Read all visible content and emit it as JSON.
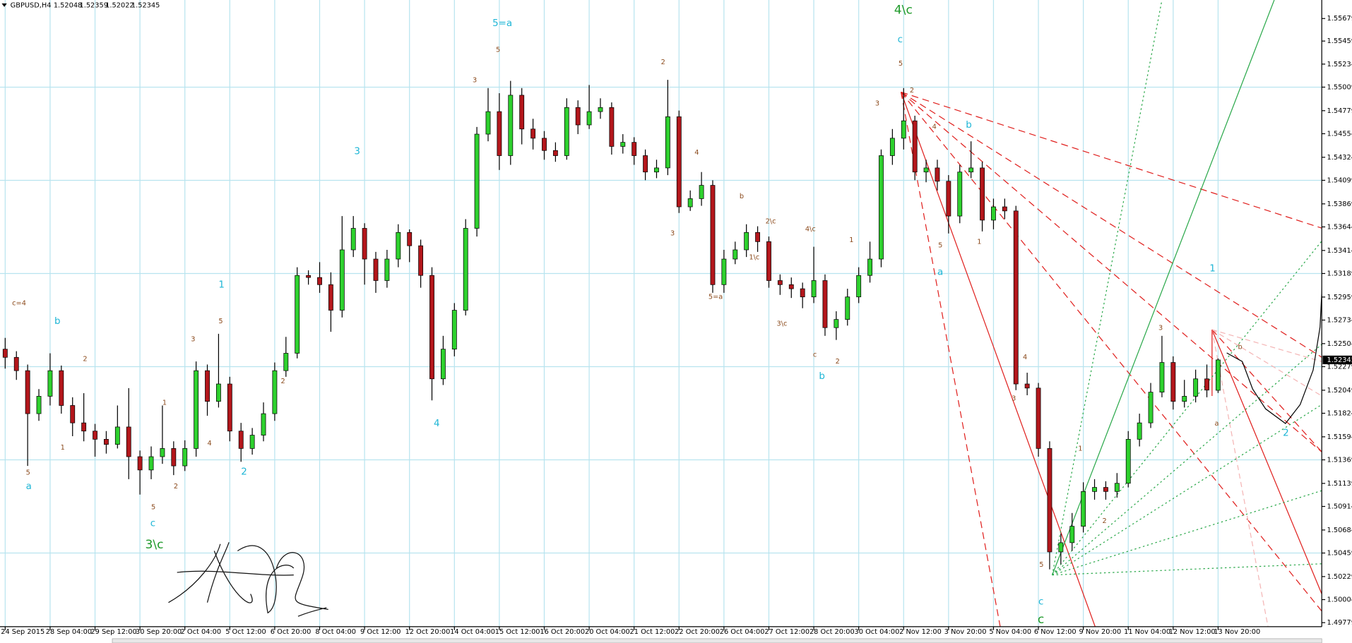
{
  "chart_data": {
    "type": "candlestick",
    "symbol": "GBPUSD,H4",
    "up_color": "#2ed12e",
    "down_color": "#b3161b",
    "grid": true,
    "ylim": [
      1.4974,
      1.5586
    ],
    "yticks": [
      1.55679,
      1.55459,
      1.55234,
      1.55009,
      1.54779,
      1.54554,
      1.54324,
      1.54099,
      1.53869,
      1.53644,
      1.53414,
      1.53189,
      1.52959,
      1.52734,
      1.52504,
      1.52279,
      1.52049,
      1.51824,
      1.51594,
      1.51369,
      1.51139,
      1.50914,
      1.50684,
      1.50459,
      1.50229,
      1.50004,
      1.49779
    ],
    "categories": [
      "24 Sep 2015",
      null,
      null,
      null,
      "28 Sep 04:00",
      null,
      null,
      null,
      "29 Sep 12:00",
      null,
      null,
      null,
      "30 Sep 20:00",
      null,
      null,
      null,
      "2 Oct 04:00",
      null,
      null,
      null,
      "5 Oct 12:00",
      null,
      null,
      null,
      "6 Oct 20:00",
      null,
      null,
      null,
      "8 Oct 04:00",
      null,
      null,
      null,
      "9 Oct 12:00",
      null,
      null,
      null,
      "12 Oct 20:00",
      null,
      null,
      null,
      "14 Oct 04:00",
      null,
      null,
      null,
      "15 Oct 12:00",
      null,
      null,
      null,
      "16 Oct 20:00",
      null,
      null,
      null,
      "20 Oct 04:00",
      null,
      null,
      null,
      "21 Oct 12:00",
      null,
      null,
      null,
      "22 Oct 20:00",
      null,
      null,
      null,
      "26 Oct 04:00",
      null,
      null,
      null,
      "27 Oct 12:00",
      null,
      null,
      null,
      "28 Oct 20:00",
      null,
      null,
      null,
      "30 Oct 04:00",
      null,
      null,
      null,
      "2 Nov 12:00",
      null,
      null,
      null,
      "3 Nov 20:00",
      null,
      null,
      null,
      "5 Nov 04:00",
      null,
      null,
      null,
      "6 Nov 12:00",
      null,
      null,
      null,
      "9 Nov 20:00",
      null,
      null,
      null,
      "11 Nov 04:00",
      null,
      null,
      null,
      "12 Nov 12:00",
      null,
      null,
      null,
      "13 Nov 20:00"
    ],
    "open": [
      1.5245,
      1.5237,
      1.5224,
      1.5182,
      1.5199,
      1.5224,
      1.519,
      1.5173,
      1.5165,
      1.5157,
      1.5152,
      1.5169,
      1.514,
      1.5127,
      1.514,
      1.5148,
      1.5131,
      1.5148,
      1.5224,
      1.5194,
      1.5211,
      1.5165,
      1.5148,
      1.5161,
      1.5182,
      1.5224,
      1.5241,
      1.5317,
      1.5315,
      1.5308,
      1.5283,
      1.5342,
      1.5363,
      1.5333,
      1.5312,
      1.5333,
      1.5359,
      1.5346,
      1.5317,
      1.5216,
      1.5245,
      1.5283,
      1.5363,
      1.5455,
      1.5477,
      1.5434,
      1.5493,
      1.546,
      1.5451,
      1.5439,
      1.5434,
      1.5481,
      1.5464,
      1.5477,
      1.5481,
      1.5443,
      1.5447,
      1.5434,
      1.5418,
      1.5422,
      1.5472,
      1.5384,
      1.5392,
      1.5405,
      1.5308,
      1.5333,
      1.5342,
      1.5359,
      1.535,
      1.5312,
      1.5308,
      1.5304,
      1.5296,
      1.5312,
      1.5266,
      1.5274,
      1.5296,
      1.5317,
      1.5333,
      1.5434,
      1.5451,
      1.5468,
      1.5418,
      1.5422,
      1.5409,
      1.5375,
      1.5418,
      1.5422,
      1.5371,
      1.5384,
      1.538,
      1.5211,
      1.5207,
      1.5148,
      1.5047,
      1.5056,
      1.5072,
      1.5106,
      1.511,
      1.5106,
      1.5114,
      1.5157,
      1.5173,
      1.5203,
      1.5232,
      1.5194,
      1.5199,
      1.5216,
      1.52048
    ],
    "high": [
      1.5256,
      1.5243,
      1.523,
      1.5206,
      1.5241,
      1.5229,
      1.5198,
      1.5202,
      1.5172,
      1.5165,
      1.519,
      1.5207,
      1.5146,
      1.515,
      1.519,
      1.5155,
      1.5156,
      1.5233,
      1.523,
      1.526,
      1.5218,
      1.5173,
      1.5168,
      1.5193,
      1.5232,
      1.5257,
      1.5325,
      1.5322,
      1.533,
      1.532,
      1.5375,
      1.5375,
      1.5368,
      1.534,
      1.5342,
      1.5367,
      1.5362,
      1.5352,
      1.5325,
      1.5258,
      1.529,
      1.5372,
      1.5462,
      1.55,
      1.5495,
      1.5507,
      1.55,
      1.547,
      1.5458,
      1.5447,
      1.549,
      1.5488,
      1.5503,
      1.549,
      1.5486,
      1.5455,
      1.5452,
      1.544,
      1.543,
      1.5508,
      1.5478,
      1.54,
      1.5418,
      1.541,
      1.5342,
      1.535,
      1.5367,
      1.5365,
      1.5355,
      1.5318,
      1.5315,
      1.531,
      1.5345,
      1.5318,
      1.5282,
      1.5304,
      1.5325,
      1.535,
      1.544,
      1.546,
      1.55,
      1.5473,
      1.543,
      1.543,
      1.5415,
      1.5425,
      1.5448,
      1.5428,
      1.5392,
      1.5392,
      1.5385,
      1.5222,
      1.5212,
      1.5155,
      1.5065,
      1.5085,
      1.5115,
      1.5118,
      1.5116,
      1.5124,
      1.5165,
      1.5182,
      1.5212,
      1.5258,
      1.5238,
      1.5215,
      1.5225,
      1.523,
      1.52359
    ],
    "low": [
      1.5226,
      1.5215,
      1.5131,
      1.5175,
      1.519,
      1.5182,
      1.516,
      1.5155,
      1.514,
      1.5143,
      1.5148,
      1.5118,
      1.5103,
      1.5118,
      1.5133,
      1.5122,
      1.5126,
      1.514,
      1.518,
      1.5188,
      1.5155,
      1.5135,
      1.5142,
      1.5155,
      1.5175,
      1.5218,
      1.5236,
      1.5308,
      1.53,
      1.5262,
      1.5276,
      1.5335,
      1.5308,
      1.53,
      1.5305,
      1.5325,
      1.533,
      1.5305,
      1.5195,
      1.521,
      1.5238,
      1.5278,
      1.5355,
      1.5448,
      1.542,
      1.5425,
      1.5445,
      1.544,
      1.543,
      1.5428,
      1.543,
      1.5455,
      1.546,
      1.547,
      1.5435,
      1.5436,
      1.5425,
      1.541,
      1.5412,
      1.5415,
      1.5378,
      1.538,
      1.5385,
      1.53,
      1.53,
      1.5328,
      1.5335,
      1.534,
      1.5305,
      1.5298,
      1.5295,
      1.5285,
      1.529,
      1.5258,
      1.5254,
      1.5268,
      1.529,
      1.531,
      1.5325,
      1.5425,
      1.544,
      1.541,
      1.5408,
      1.54,
      1.5358,
      1.5368,
      1.5412,
      1.536,
      1.5362,
      1.5372,
      1.5205,
      1.52,
      1.514,
      1.503,
      1.5035,
      1.5048,
      1.5066,
      1.5098,
      1.5098,
      1.51,
      1.511,
      1.515,
      1.5168,
      1.5198,
      1.5186,
      1.5188,
      1.5193,
      1.5198,
      1.52022
    ],
    "close": [
      1.5237,
      1.5224,
      1.5182,
      1.5199,
      1.5224,
      1.519,
      1.5173,
      1.5165,
      1.5157,
      1.5152,
      1.5169,
      1.514,
      1.5127,
      1.514,
      1.5148,
      1.5131,
      1.5148,
      1.5224,
      1.5194,
      1.5211,
      1.5165,
      1.5148,
      1.5161,
      1.5182,
      1.5224,
      1.5241,
      1.5317,
      1.5315,
      1.5308,
      1.5283,
      1.5342,
      1.5363,
      1.5333,
      1.5312,
      1.5333,
      1.5359,
      1.5346,
      1.5317,
      1.5216,
      1.5245,
      1.5283,
      1.5363,
      1.5455,
      1.5477,
      1.5434,
      1.5493,
      1.546,
      1.5451,
      1.5439,
      1.5434,
      1.5481,
      1.5464,
      1.5477,
      1.5481,
      1.5443,
      1.5447,
      1.5434,
      1.5418,
      1.5422,
      1.5472,
      1.5384,
      1.5392,
      1.5405,
      1.5308,
      1.5333,
      1.5342,
      1.5359,
      1.535,
      1.5312,
      1.5308,
      1.5304,
      1.5296,
      1.5312,
      1.5266,
      1.5274,
      1.5296,
      1.5317,
      1.5333,
      1.5434,
      1.5451,
      1.5468,
      1.5418,
      1.5422,
      1.5409,
      1.5375,
      1.5418,
      1.5422,
      1.5371,
      1.5384,
      1.538,
      1.5211,
      1.5207,
      1.5148,
      1.5047,
      1.5056,
      1.5072,
      1.5106,
      1.511,
      1.5106,
      1.5114,
      1.5157,
      1.5173,
      1.5203,
      1.5232,
      1.5194,
      1.5199,
      1.5216,
      1.5205,
      1.52345
    ],
    "annotations": [
      "5=a",
      "4\\c",
      "3\\c",
      "c",
      "3",
      "1",
      "4",
      "2",
      "a",
      "b",
      "c",
      "c",
      "b",
      "a",
      "b",
      "1",
      "2",
      "c",
      "c=4",
      "5",
      "3",
      "2",
      "2",
      "5",
      "3",
      "4",
      "b",
      "2\\c",
      "4\\c",
      "1\\c",
      "5=a",
      "3\\c",
      "3",
      "4",
      "3",
      "5",
      "a",
      "b",
      "5",
      "1",
      "2",
      "5",
      "1",
      "2",
      "3",
      "4",
      "5",
      "2",
      "c",
      "2",
      "1",
      "4",
      "2",
      "1",
      "3",
      "5",
      "1"
    ]
  }
}
